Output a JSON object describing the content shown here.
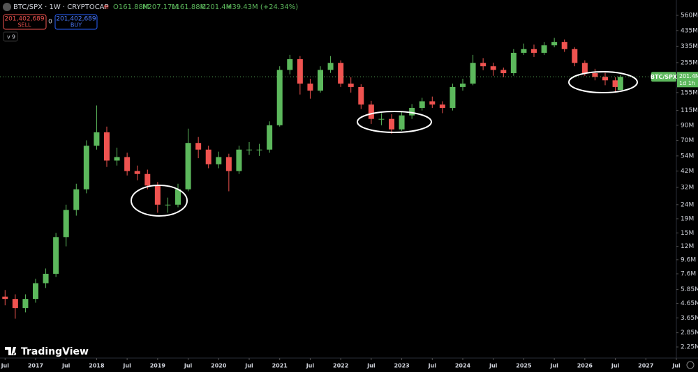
{
  "chart_data": {
    "type": "candlestick",
    "symbol_line": "BTC/SPX · 1W · CRYPTOCAP",
    "ohlc_labels": [
      "O161.88M",
      "H207.17M",
      "L161.88M",
      "C201.4M",
      "+39.43M (+24.34%)"
    ],
    "sell_price": "201,402,689",
    "sell_label": "SELL",
    "spread": "0",
    "buy_price": "201,402,689",
    "buy_label": "BUY",
    "indicator_count": "9",
    "brand": "TradingView",
    "price_tag": {
      "symbol": "BTC/SPX",
      "price": "201.4M",
      "countdown": "1d 1h"
    },
    "log_scale": true,
    "grid": false,
    "up_color": "#5cb85c",
    "down_color": "#ef5350",
    "x": [
      "2016-07",
      "2016-09",
      "2016-11",
      "2017-01",
      "2017-03",
      "2017-05",
      "2017-07",
      "2017-09",
      "2017-11",
      "2018-01",
      "2018-03",
      "2018-05",
      "2018-07",
      "2018-09",
      "2018-11",
      "2019-01",
      "2019-03",
      "2019-05",
      "2019-07",
      "2019-09",
      "2019-11",
      "2020-01",
      "2020-03",
      "2020-05",
      "2020-07",
      "2020-09",
      "2020-11",
      "2021-01",
      "2021-03",
      "2021-05",
      "2021-07",
      "2021-09",
      "2021-11",
      "2022-01",
      "2022-03",
      "2022-05",
      "2022-07",
      "2022-09",
      "2022-11",
      "2023-01",
      "2023-03",
      "2023-05",
      "2023-07",
      "2023-09",
      "2023-11",
      "2024-01",
      "2024-03",
      "2024-05",
      "2024-07",
      "2024-09",
      "2024-11",
      "2025-01",
      "2025-03",
      "2025-05",
      "2025-07",
      "2025-09",
      "2025-11",
      "2026-01",
      "2026-03",
      "2026-05",
      "2026-07",
      "2026-08"
    ],
    "open": [
      5.2,
      5.0,
      4.3,
      5.0,
      6.5,
      7.6,
      14,
      22,
      31,
      64,
      80,
      50,
      53,
      42,
      40,
      33,
      24,
      24,
      31,
      67,
      60,
      47,
      53,
      42,
      60,
      60,
      60,
      90,
      226,
      270,
      180,
      160,
      226,
      254,
      180,
      170,
      127,
      100,
      100,
      84,
      106,
      120,
      134,
      127,
      120,
      170,
      180,
      254,
      240,
      226,
      214,
      300,
      320,
      300,
      340,
      360,
      320,
      254,
      214,
      201,
      190,
      161.88
    ],
    "high": [
      5.8,
      5.4,
      5.4,
      7.0,
      8.3,
      15,
      24,
      34,
      70,
      125,
      88,
      62,
      57,
      46,
      43,
      35,
      27,
      34,
      85,
      74,
      64,
      58,
      56,
      64,
      68,
      66,
      96,
      240,
      290,
      285,
      195,
      240,
      285,
      265,
      200,
      178,
      135,
      110,
      108,
      112,
      128,
      142,
      145,
      134,
      180,
      195,
      290,
      275,
      255,
      235,
      320,
      350,
      345,
      360,
      385,
      375,
      330,
      265,
      230,
      215,
      200,
      207.17
    ],
    "low": [
      4.5,
      3.6,
      4.0,
      4.7,
      6.0,
      7.2,
      12,
      20,
      29,
      60,
      45,
      46,
      39,
      36,
      31,
      21,
      21,
      23,
      30,
      52,
      44,
      44,
      30,
      40,
      55,
      54,
      57,
      88,
      210,
      150,
      140,
      155,
      215,
      170,
      155,
      118,
      92,
      90,
      78,
      82,
      100,
      115,
      120,
      110,
      115,
      160,
      175,
      225,
      205,
      200,
      205,
      290,
      280,
      290,
      330,
      305,
      240,
      205,
      190,
      175,
      155,
      161.88
    ],
    "close": [
      5.0,
      4.3,
      5.0,
      6.5,
      7.6,
      14,
      22,
      31,
      64,
      80,
      50,
      53,
      42,
      40,
      33,
      24,
      24,
      31,
      67,
      60,
      47,
      53,
      42,
      60,
      60,
      60,
      90,
      226,
      270,
      180,
      160,
      226,
      254,
      180,
      170,
      127,
      100,
      100,
      84,
      106,
      120,
      134,
      127,
      120,
      170,
      180,
      254,
      240,
      226,
      214,
      300,
      320,
      300,
      340,
      360,
      320,
      254,
      214,
      201,
      190,
      170,
      201.4
    ],
    "last_price": 201.4,
    "xlim": [
      "2016-06",
      "2027-07"
    ],
    "xticks": [
      {
        "value": "2016-07",
        "label": "Jul"
      },
      {
        "value": "2017-01",
        "label": "2017"
      },
      {
        "value": "2017-07",
        "label": "Jul"
      },
      {
        "value": "2018-01",
        "label": "2018"
      },
      {
        "value": "2018-07",
        "label": "Jul"
      },
      {
        "value": "2019-01",
        "label": "2019"
      },
      {
        "value": "2019-07",
        "label": "Jul"
      },
      {
        "value": "2020-01",
        "label": "2020"
      },
      {
        "value": "2020-07",
        "label": "Jul"
      },
      {
        "value": "2021-01",
        "label": "2021"
      },
      {
        "value": "2021-07",
        "label": "Jul"
      },
      {
        "value": "2022-01",
        "label": "2022"
      },
      {
        "value": "2022-07",
        "label": "Jul"
      },
      {
        "value": "2023-01",
        "label": "2023"
      },
      {
        "value": "2023-07",
        "label": "Jul"
      },
      {
        "value": "2024-01",
        "label": "2024"
      },
      {
        "value": "2024-07",
        "label": "Jul"
      },
      {
        "value": "2025-01",
        "label": "2025"
      },
      {
        "value": "2025-07",
        "label": "Jul"
      },
      {
        "value": "2026-01",
        "label": "2026"
      },
      {
        "value": "2026-07",
        "label": "Jul"
      },
      {
        "value": "2027-01",
        "label": "2027"
      },
      {
        "value": "2027-07",
        "label": "Jul"
      }
    ],
    "ylim": [
      1.87,
      723
    ],
    "yticks": [
      {
        "value": 560,
        "label": "560M"
      },
      {
        "value": 435,
        "label": "435M"
      },
      {
        "value": 335,
        "label": "335M"
      },
      {
        "value": 255,
        "label": "255M"
      },
      {
        "value": 155,
        "label": "155M"
      },
      {
        "value": 115,
        "label": "115M"
      },
      {
        "value": 90,
        "label": "90M"
      },
      {
        "value": 70,
        "label": "70M"
      },
      {
        "value": 54,
        "label": "54M"
      },
      {
        "value": 42,
        "label": "42M"
      },
      {
        "value": 32,
        "label": "32M"
      },
      {
        "value": 24,
        "label": "24M"
      },
      {
        "value": 19,
        "label": "19M"
      },
      {
        "value": 15,
        "label": "15M"
      },
      {
        "value": 12,
        "label": "12M"
      },
      {
        "value": 9.6,
        "label": "9.6M"
      },
      {
        "value": 7.6,
        "label": "7.6M"
      },
      {
        "value": 5.85,
        "label": "5.85M"
      },
      {
        "value": 4.65,
        "label": "4.65M"
      },
      {
        "value": 3.65,
        "label": "3.65M"
      },
      {
        "value": 2.85,
        "label": "2.85M"
      },
      {
        "value": 2.25,
        "label": "2.25M"
      }
    ]
  }
}
